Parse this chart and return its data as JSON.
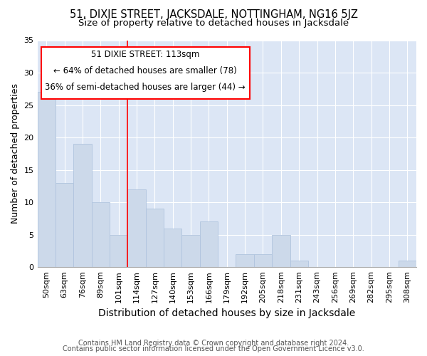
{
  "title": "51, DIXIE STREET, JACKSDALE, NOTTINGHAM, NG16 5JZ",
  "subtitle": "Size of property relative to detached houses in Jacksdale",
  "xlabel": "Distribution of detached houses by size in Jacksdale",
  "ylabel": "Number of detached properties",
  "bar_color": "#ccd9ea",
  "bar_edgecolor": "#b0c4de",
  "background_color": "#dce6f5",
  "grid_color": "#ffffff",
  "categories": [
    "50sqm",
    "63sqm",
    "76sqm",
    "89sqm",
    "101sqm",
    "114sqm",
    "127sqm",
    "140sqm",
    "153sqm",
    "166sqm",
    "179sqm",
    "192sqm",
    "205sqm",
    "218sqm",
    "231sqm",
    "243sqm",
    "256sqm",
    "269sqm",
    "282sqm",
    "295sqm",
    "308sqm"
  ],
  "values": [
    27,
    13,
    19,
    10,
    5,
    12,
    9,
    6,
    5,
    7,
    0,
    2,
    2,
    5,
    1,
    0,
    0,
    0,
    0,
    0,
    1
  ],
  "ylim": [
    0,
    35
  ],
  "yticks": [
    0,
    5,
    10,
    15,
    20,
    25,
    30,
    35
  ],
  "property_line_x": 5,
  "property_label": "51 DIXIE STREET: 113sqm",
  "annotation_line1": "← 64% of detached houses are smaller (78)",
  "annotation_line2": "36% of semi-detached houses are larger (44) →",
  "box_color": "white",
  "box_edgecolor": "red",
  "vline_color": "red",
  "footnote1": "Contains HM Land Registry data © Crown copyright and database right 2024.",
  "footnote2": "Contains public sector information licensed under the Open Government Licence v3.0.",
  "title_fontsize": 10.5,
  "subtitle_fontsize": 9.5,
  "ylabel_fontsize": 9,
  "xlabel_fontsize": 10,
  "tick_fontsize": 8,
  "annotation_fontsize": 8.5,
  "footnote_fontsize": 7
}
